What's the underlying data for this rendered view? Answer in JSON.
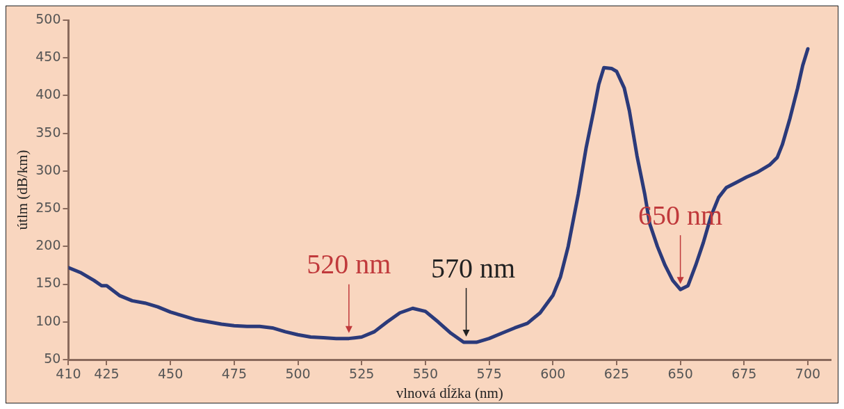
{
  "chart_data": {
    "type": "line",
    "xlabel": "vlnová dĺžka (nm)",
    "ylabel": "útlm (dB/km)",
    "xlim": [
      410,
      709
    ],
    "xticks": [
      410,
      425,
      450,
      475,
      500,
      525,
      550,
      575,
      600,
      625,
      650,
      675,
      700
    ],
    "ylim": [
      50,
      500
    ],
    "yticks": [
      50,
      100,
      150,
      200,
      250,
      300,
      350,
      400,
      450,
      500
    ],
    "grid": false,
    "legend": false,
    "marker": "none",
    "line_style": "solid",
    "annotations": [
      {
        "text": "520 nm",
        "x": 520,
        "y": 78
      },
      {
        "text": "570 nm",
        "x": 566,
        "y": 73
      },
      {
        "text": "650 nm",
        "x": 650,
        "y": 143
      }
    ],
    "series": [
      {
        "color": "#2b3a7a",
        "x": [
          410,
          415,
          420,
          423,
          425,
          430,
          435,
          440,
          445,
          450,
          455,
          460,
          465,
          470,
          475,
          480,
          485,
          490,
          495,
          500,
          505,
          510,
          515,
          520,
          525,
          530,
          535,
          540,
          545,
          550,
          555,
          560,
          565,
          570,
          575,
          580,
          585,
          590,
          595,
          600,
          603,
          606,
          610,
          613,
          616,
          618,
          620,
          623,
          625,
          628,
          630,
          633,
          636,
          638,
          641,
          644,
          647,
          650,
          653,
          656,
          659,
          662,
          665,
          668,
          672,
          676,
          680,
          685,
          688,
          690,
          693,
          696,
          698,
          700
        ],
        "values": [
          172,
          165,
          155,
          148,
          148,
          135,
          128,
          125,
          120,
          113,
          108,
          103,
          100,
          97,
          95,
          94,
          94,
          92,
          87,
          83,
          80,
          79,
          78,
          78,
          80,
          87,
          100,
          112,
          118,
          114,
          100,
          85,
          73,
          73,
          78,
          85,
          92,
          98,
          112,
          135,
          160,
          200,
          270,
          330,
          380,
          415,
          437,
          436,
          432,
          410,
          380,
          320,
          270,
          230,
          200,
          175,
          155,
          143,
          148,
          175,
          205,
          240,
          265,
          278,
          285,
          292,
          298,
          308,
          318,
          335,
          370,
          410,
          440,
          462
        ]
      }
    ]
  }
}
